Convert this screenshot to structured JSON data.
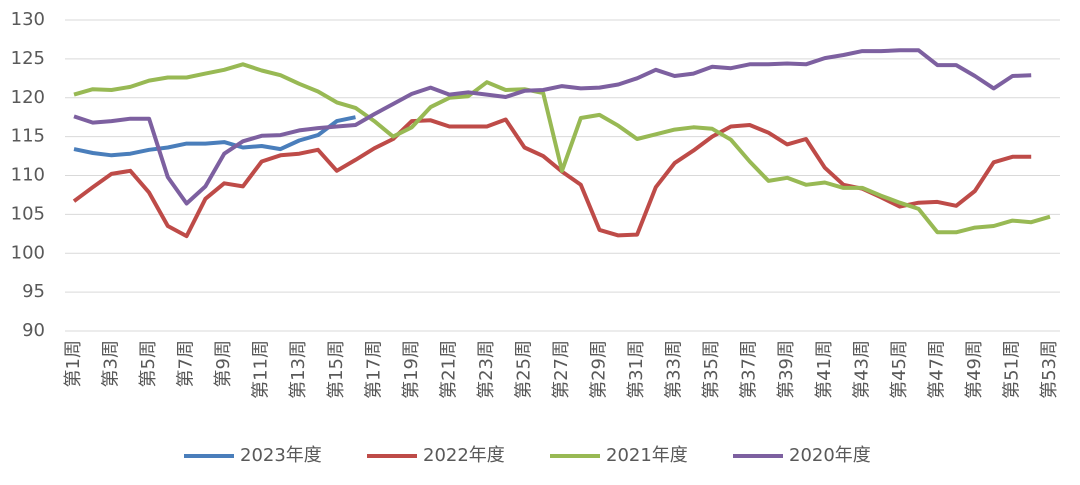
{
  "chart_data": {
    "type": "line",
    "categories": [
      "第1周",
      null,
      "第3周",
      null,
      "第5周",
      null,
      "第7周",
      null,
      "第9周",
      null,
      "第11周",
      null,
      "第13周",
      null,
      "第15周",
      null,
      "第17周",
      null,
      "第19周",
      null,
      "第21周",
      null,
      "第23周",
      null,
      "第25周",
      null,
      "第27周",
      null,
      "第29周",
      null,
      "第31周",
      null,
      "第33周",
      null,
      "第35周",
      null,
      "第37周",
      null,
      "第39周",
      null,
      "第41周",
      null,
      "第43周",
      null,
      "第45周",
      null,
      "第47周",
      null,
      "第49周",
      null,
      "第51周",
      null,
      "第53周"
    ],
    "series": [
      {
        "name": "2023年度",
        "color": "#4a7ebb",
        "values": [
          113.4,
          112.9,
          112.6,
          112.8,
          113.3,
          113.6,
          114.1,
          114.1,
          114.3,
          113.6,
          113.8,
          113.4,
          114.5,
          115.2,
          117.0,
          117.5,
          null,
          null,
          null,
          null,
          null,
          null,
          null,
          null,
          null,
          null,
          null,
          null,
          null,
          null,
          null,
          null,
          null,
          null,
          null,
          null,
          null,
          null,
          null,
          null,
          null,
          null,
          null,
          null,
          null,
          null,
          null,
          null,
          null,
          null,
          null,
          null,
          null
        ]
      },
      {
        "name": "2022年度",
        "color": "#be4b48",
        "values": [
          106.7,
          108.5,
          110.2,
          110.6,
          107.8,
          103.5,
          102.2,
          107.0,
          109.0,
          108.6,
          111.8,
          112.6,
          112.8,
          113.3,
          110.6,
          112.0,
          113.5,
          114.7,
          117.0,
          117.1,
          116.3,
          116.3,
          116.3,
          117.2,
          113.6,
          112.5,
          110.5,
          108.8,
          103.0,
          102.3,
          102.4,
          108.5,
          111.6,
          113.2,
          115.0,
          116.3,
          116.5,
          115.5,
          114.0,
          114.7,
          111.0,
          108.8,
          108.3,
          107.2,
          106.0,
          106.5,
          106.6,
          106.1,
          108.0,
          111.7,
          112.4,
          112.4,
          null
        ]
      },
      {
        "name": "2021年度",
        "color": "#98b954",
        "values": [
          120.4,
          121.1,
          121.0,
          121.4,
          122.2,
          122.6,
          122.6,
          123.1,
          123.6,
          124.3,
          123.5,
          122.9,
          121.8,
          120.8,
          119.4,
          118.7,
          117.0,
          115.0,
          116.2,
          118.8,
          120.0,
          120.2,
          122.0,
          121.0,
          121.1,
          120.6,
          110.6,
          117.4,
          117.8,
          116.4,
          114.7,
          115.3,
          115.9,
          116.2,
          116.0,
          114.6,
          111.8,
          109.3,
          109.7,
          108.8,
          109.1,
          108.4,
          108.4,
          107.4,
          106.5,
          105.7,
          102.7,
          102.7,
          103.3,
          103.5,
          104.2,
          104.0,
          104.7
        ]
      },
      {
        "name": "2020年度",
        "color": "#7d60a0",
        "values": [
          117.6,
          116.8,
          117.0,
          117.3,
          117.3,
          109.8,
          106.4,
          108.6,
          112.8,
          114.4,
          115.1,
          115.2,
          115.8,
          116.1,
          116.3,
          116.5,
          117.9,
          119.2,
          120.5,
          121.3,
          120.4,
          120.7,
          120.4,
          120.1,
          120.9,
          121.0,
          121.5,
          121.2,
          121.3,
          121.7,
          122.5,
          123.6,
          122.8,
          123.1,
          124.0,
          123.8,
          124.3,
          124.3,
          124.4,
          124.3,
          125.1,
          125.5,
          126.0,
          126.0,
          126.1,
          126.1,
          124.2,
          124.2,
          122.8,
          121.2,
          122.8,
          122.9,
          null
        ]
      }
    ],
    "ylim": [
      90,
      130
    ],
    "yticks": [
      90,
      95,
      100,
      105,
      110,
      115,
      120,
      125,
      130
    ],
    "grid": true,
    "legend": "bottom"
  }
}
